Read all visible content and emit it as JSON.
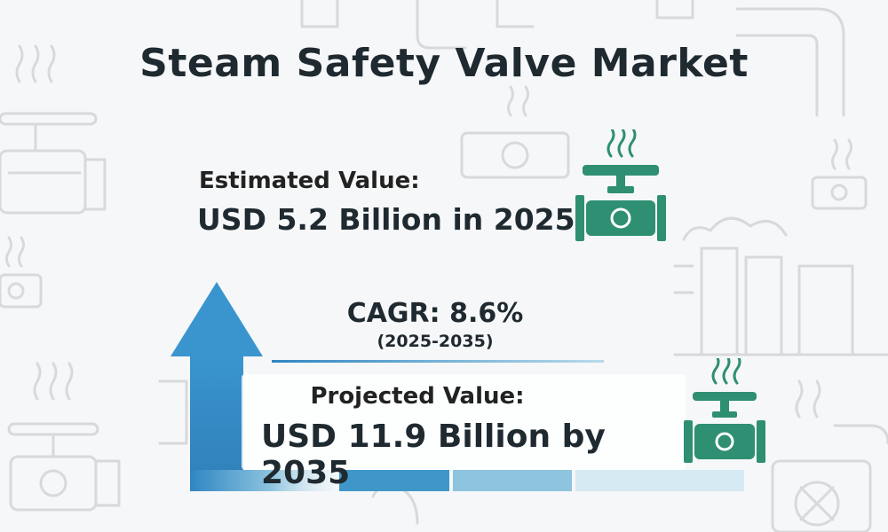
{
  "title": "Steam Safety Valve Market",
  "estimated": {
    "label": "Estimated Value:",
    "value": "USD 5.2 Billion in 2025"
  },
  "cagr": {
    "label": "CAGR: 8.6%",
    "range": "(2025-2035)"
  },
  "projected": {
    "label": "Projected Value:",
    "value": "USD 11.9 Billion by 2035"
  },
  "colors": {
    "accent_blue": "#2f86c2",
    "valve_green": "#2e8f72",
    "text": "#1f2a30"
  },
  "icons": [
    "steam-valve-icon",
    "growth-arrow-icon",
    "background-pipe-icon"
  ]
}
